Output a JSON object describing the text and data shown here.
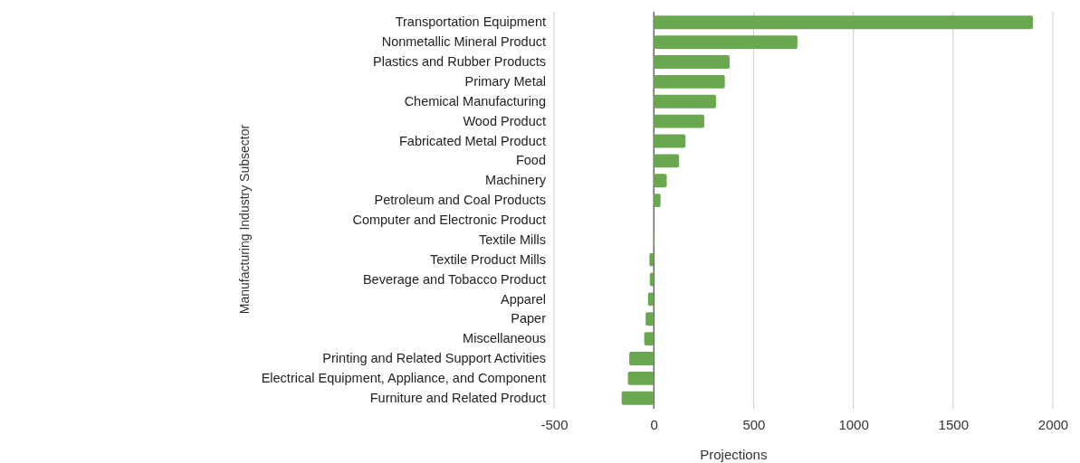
{
  "chart_data": {
    "type": "bar",
    "orientation": "horizontal",
    "xlabel": "Projections",
    "ylabel": "Manufacturing Industry Subsector",
    "categories": [
      "Transportation Equipment",
      "Nonmetallic Mineral Product",
      "Plastics and Rubber Products",
      "Primary Metal",
      "Chemical Manufacturing",
      "Wood Product",
      "Fabricated Metal Product",
      "Food",
      "Machinery",
      "Petroleum and Coal Products",
      "Computer and Electronic Product",
      "Textile Mills",
      "Textile Product Mills",
      "Beverage and Tobacco Product",
      "Apparel",
      "Paper",
      "Miscellaneous",
      "Printing and Related Support Activities",
      "Electrical Equipment, Appliance, and Component",
      "Furniture and Related Product"
    ],
    "values": [
      1900,
      720,
      380,
      356,
      312,
      253,
      159,
      127,
      65,
      34,
      0,
      2,
      -22,
      -20,
      -29,
      -41,
      -48,
      -123,
      -130,
      -161
    ],
    "color": "#6aa84f",
    "xlim": [
      -500,
      2000
    ],
    "xticks": [
      -500,
      0,
      500,
      1000,
      1500,
      2000
    ],
    "grid": "x"
  }
}
